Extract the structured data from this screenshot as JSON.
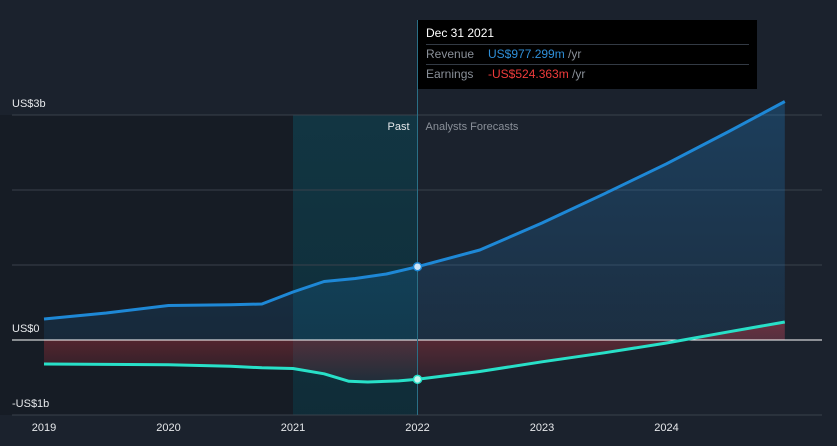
{
  "tooltip": {
    "date": "Dec 31 2021",
    "revenue_label": "Revenue",
    "revenue_value": "US$977.299m",
    "earnings_label": "Earnings",
    "earnings_value": "-US$524.363m",
    "unit": " /yr"
  },
  "chart_data": {
    "type": "area",
    "ylim": [
      -1000,
      3000
    ],
    "xlim": [
      2019.0,
      2025.0
    ],
    "y_tick_labels": [
      {
        "value": 3000,
        "label": "US$3b"
      },
      {
        "value": 0,
        "label": "US$0"
      },
      {
        "value": -1000,
        "label": "-US$1b"
      }
    ],
    "x_tick_labels": [
      {
        "value": 2019,
        "label": "2019"
      },
      {
        "value": 2020,
        "label": "2020"
      },
      {
        "value": 2021,
        "label": "2021"
      },
      {
        "value": 2022,
        "label": "2022"
      },
      {
        "value": 2023,
        "label": "2023"
      },
      {
        "value": 2024,
        "label": "2024"
      }
    ],
    "past_label": "Past",
    "forecast_label": "Analysts Forecasts",
    "past_end": 2022.0,
    "highlight_start": 2021.0,
    "series": [
      {
        "name": "Revenue",
        "color": "#1e88d6",
        "points": [
          [
            2019.0,
            280
          ],
          [
            2019.5,
            360
          ],
          [
            2020.0,
            460
          ],
          [
            2020.5,
            470
          ],
          [
            2020.75,
            480
          ],
          [
            2021.0,
            640
          ],
          [
            2021.25,
            780
          ],
          [
            2021.5,
            820
          ],
          [
            2021.75,
            880
          ],
          [
            2022.0,
            977.299
          ],
          [
            2022.5,
            1200
          ],
          [
            2023.0,
            1560
          ],
          [
            2023.5,
            1950
          ],
          [
            2024.0,
            2350
          ],
          [
            2024.5,
            2780
          ],
          [
            2024.95,
            3180
          ]
        ]
      },
      {
        "name": "Earnings",
        "color": "#28e0c8",
        "points": [
          [
            2019.0,
            -320
          ],
          [
            2019.5,
            -325
          ],
          [
            2020.0,
            -330
          ],
          [
            2020.5,
            -350
          ],
          [
            2020.75,
            -370
          ],
          [
            2021.0,
            -380
          ],
          [
            2021.25,
            -450
          ],
          [
            2021.45,
            -550
          ],
          [
            2021.6,
            -560
          ],
          [
            2021.85,
            -545
          ],
          [
            2022.0,
            -524.363
          ],
          [
            2022.5,
            -420
          ],
          [
            2023.0,
            -290
          ],
          [
            2023.5,
            -170
          ],
          [
            2024.0,
            -40
          ],
          [
            2024.5,
            110
          ],
          [
            2024.95,
            240
          ]
        ]
      }
    ]
  }
}
